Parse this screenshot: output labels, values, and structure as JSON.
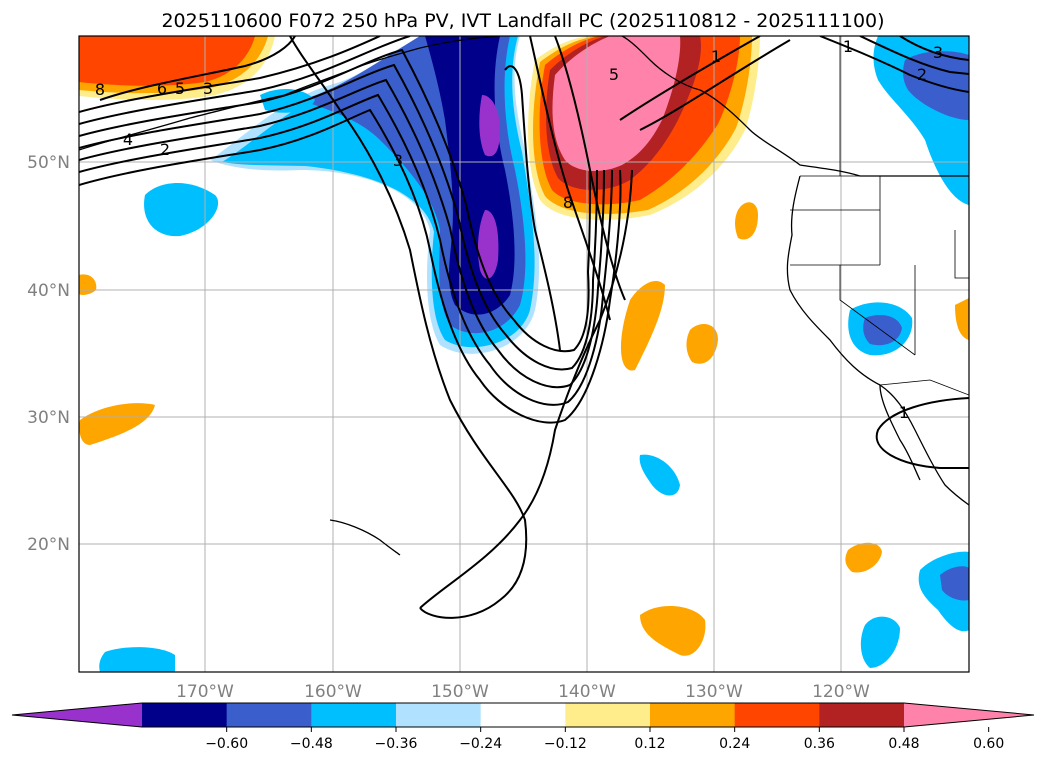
{
  "title": "2025110600 F072 250 hPa PV, IVT Landfall PC (2025110812 - 2025111100)",
  "map": {
    "projection": "PlateCarree",
    "lon_range": [
      -180,
      -110
    ],
    "lat_range": [
      10,
      60
    ],
    "lat_ticks": [
      {
        "value": 50,
        "label": "50°N"
      },
      {
        "value": 40,
        "label": "40°N"
      },
      {
        "value": 30,
        "label": "30°N"
      },
      {
        "value": 20,
        "label": "20°N"
      }
    ],
    "lon_ticks": [
      {
        "value": -170,
        "label": "170°W"
      },
      {
        "value": -160,
        "label": "160°W"
      },
      {
        "value": -150,
        "label": "150°W"
      },
      {
        "value": -140,
        "label": "140°W"
      },
      {
        "value": -130,
        "label": "130°W"
      },
      {
        "value": -120,
        "label": "120°W"
      }
    ],
    "gridlines": true,
    "coastlines": true,
    "state_borders": true
  },
  "colorbar": {
    "orientation": "horizontal",
    "extend": "both",
    "levels": [
      "-0.60",
      "-0.48",
      "-0.36",
      "-0.24",
      "-0.12",
      "0.12",
      "0.24",
      "0.36",
      "0.48",
      "0.60"
    ],
    "colors": [
      "#9932CC",
      "#00008B",
      "#3A5FCD",
      "#00BFFF",
      "#B0E2FF",
      "#FFFFFF",
      "#FFEC8B",
      "#FFA500",
      "#FF4500",
      "#B22222",
      "#FF82AB"
    ]
  },
  "contour_labels": [
    "8",
    "6",
    "5",
    "3",
    "4",
    "2",
    "3",
    "8",
    "5",
    "1",
    "2",
    "3",
    "1",
    "1"
  ],
  "chart_data": {
    "type": "heatmap",
    "title": "2025110600 F072 250 hPa PV, IVT Landfall PC (2025110812 - 2025111100)",
    "variables": [
      "250 hPa PV (black contours)",
      "IVT Landfall PC (filled)"
    ],
    "shaded_features": [
      {
        "desc": "negative band",
        "lon_center": -149,
        "lat_range": [
          38,
          60
        ],
        "peak": "< -0.60"
      },
      {
        "desc": "positive band",
        "lon_center": -139,
        "lat_range": [
          46,
          60
        ],
        "peak": "> 0.60"
      },
      {
        "desc": "positive",
        "lon_center": -172,
        "lat_center": 57,
        "peak": "0.36-0.48"
      },
      {
        "desc": "negative",
        "lon_center": -120,
        "lat_center": 37,
        "peak": "-0.36"
      },
      {
        "desc": "negative",
        "lon_center": -114,
        "lat_center": 56,
        "peak": "-0.36"
      }
    ],
    "contour_levels_labeled": [
      1,
      2,
      3,
      4,
      5,
      6,
      8
    ]
  }
}
